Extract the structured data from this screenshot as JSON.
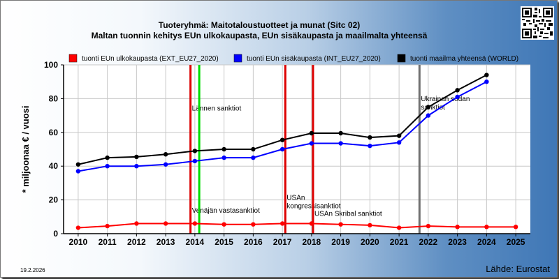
{
  "header": {
    "title_line1": "Tuoteryhmä: Maitotaloustuotteet ja munat (Sitc 02)",
    "title_line2": "Maltan tuonnin kehitys EUn ulkokaupasta, EUn sisäkaupasta ja maailmalta yhteensä"
  },
  "footer": {
    "date": "19.2.2026",
    "source": "Lähde: Eurostat"
  },
  "chart_data": {
    "type": "line",
    "ylabel": "* miljoonaa € / vuosi",
    "ylim": [
      0,
      100
    ],
    "yticks": [
      0,
      20,
      40,
      60,
      80,
      100
    ],
    "xlim": [
      2010,
      2025
    ],
    "x": [
      2010,
      2011,
      2012,
      2013,
      2014,
      2015,
      2016,
      2017,
      2018,
      2019,
      2020,
      2021,
      2022,
      2023,
      2024,
      2025
    ],
    "grid": true,
    "legend_position": "top",
    "series": [
      {
        "name": "tuonti EUn ulkokaupasta (EXT_EU27_2020)",
        "color": "#ff0000",
        "x": [
          2010,
          2011,
          2012,
          2013,
          2014,
          2015,
          2016,
          2017,
          2018,
          2019,
          2020,
          2021,
          2022,
          2023,
          2024,
          2025
        ],
        "values": [
          3.5,
          4.5,
          6,
          6,
          6,
          5.5,
          5.5,
          6,
          6,
          5.5,
          5,
          3.5,
          4.5,
          4,
          4,
          4
        ]
      },
      {
        "name": "tuonti EUn sisäkaupasta (INT_EU27_2020)",
        "color": "#0000ff",
        "x": [
          2010,
          2011,
          2012,
          2013,
          2014,
          2015,
          2016,
          2017,
          2018,
          2019,
          2020,
          2021,
          2022,
          2023,
          2024
        ],
        "values": [
          37,
          40,
          40,
          41,
          43,
          45,
          45,
          50,
          53.5,
          53.5,
          52,
          54,
          70,
          81,
          90
        ]
      },
      {
        "name": "tuonti maailma yhteensä (WORLD)",
        "color": "#000000",
        "x": [
          2010,
          2011,
          2012,
          2013,
          2014,
          2015,
          2016,
          2017,
          2018,
          2019,
          2020,
          2021,
          2022,
          2023,
          2024
        ],
        "values": [
          41,
          45,
          45.5,
          47,
          49,
          50,
          50,
          55.5,
          59.5,
          59.5,
          57,
          58,
          75,
          85,
          94
        ]
      }
    ],
    "events": [
      {
        "x": 2013.85,
        "color": "#dd0000",
        "labels": [
          {
            "text": "Lännen sanktiot",
            "y": 73
          },
          {
            "text": "Venäjän vastasanktiot",
            "y": 12.5
          }
        ]
      },
      {
        "x": 2014.15,
        "color": "#00dd00",
        "labels": []
      },
      {
        "x": 2017.1,
        "color": "#dd0000",
        "labels": [
          {
            "text": "USAn",
            "y": 20
          },
          {
            "text": "kongressisanktiot",
            "y": 15
          }
        ]
      },
      {
        "x": 2018.05,
        "color": "#dd0000",
        "labels": [
          {
            "text": "USAn Skribal sanktiot",
            "y": 10.5
          }
        ]
      },
      {
        "x": 2021.7,
        "color": "#707070",
        "labels": [
          {
            "text": "Ukrainan sodan",
            "y": 78.5
          },
          {
            "text": "sanktiot",
            "y": 73.5
          }
        ]
      }
    ]
  }
}
